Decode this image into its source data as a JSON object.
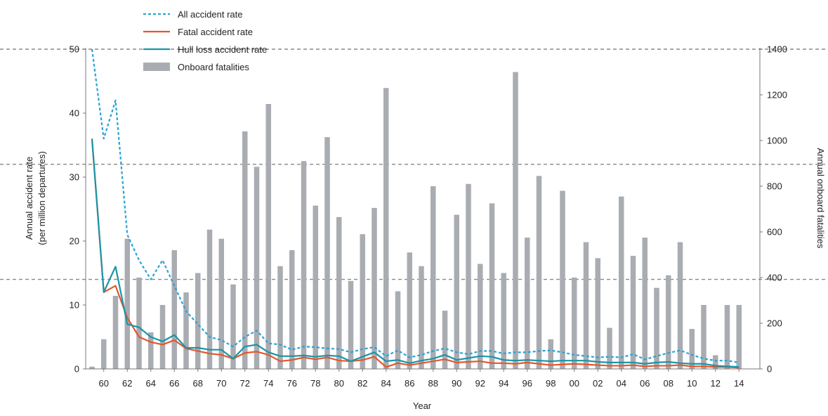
{
  "chart_data": {
    "type": "bar",
    "xlabel": "Year",
    "ylabel_left_line1": "Annual accident rate",
    "ylabel_left_line2": "(per million departures)",
    "ylabel_right": "Annual onboard fatalities",
    "ylim_left": [
      0,
      50
    ],
    "ylim_right": [
      0,
      1400
    ],
    "yticks_left": [
      "0",
      "10",
      "20",
      "30",
      "40",
      "50"
    ],
    "yticks_right": [
      "0",
      "200",
      "400",
      "600",
      "800",
      "1000",
      "1200",
      "1400"
    ],
    "x_tick_labels": [
      "60",
      "62",
      "64",
      "66",
      "68",
      "70",
      "72",
      "74",
      "76",
      "78",
      "80",
      "82",
      "84",
      "86",
      "88",
      "90",
      "92",
      "94",
      "96",
      "98",
      "00",
      "02",
      "04",
      "06",
      "08",
      "10",
      "12",
      "14"
    ],
    "years": [
      1959,
      1960,
      1961,
      1962,
      1963,
      1964,
      1965,
      1966,
      1967,
      1968,
      1969,
      1970,
      1971,
      1972,
      1973,
      1974,
      1975,
      1976,
      1977,
      1978,
      1979,
      1980,
      1981,
      1982,
      1983,
      1984,
      1985,
      1986,
      1987,
      1988,
      1989,
      1990,
      1991,
      1992,
      1993,
      1994,
      1995,
      1996,
      1997,
      1998,
      1999,
      2000,
      2001,
      2002,
      2003,
      2004,
      2005,
      2006,
      2007,
      2008,
      2009,
      2010,
      2011,
      2012,
      2013,
      2014
    ],
    "legend_position": "top-left",
    "series": [
      {
        "name": "All accident rate",
        "axis": "left",
        "kind": "line",
        "style": "dashed",
        "color": "#2aa3d8",
        "values": [
          50,
          36,
          42,
          21,
          17,
          14,
          17,
          13,
          9,
          7,
          5,
          4.5,
          3.5,
          5,
          6,
          4,
          3.8,
          3,
          3.5,
          3.4,
          3.2,
          3.1,
          2.6,
          3.1,
          3.4,
          2,
          2.9,
          1.8,
          2.2,
          2.8,
          3.2,
          2.6,
          2.3,
          2.8,
          2.8,
          2.4,
          2.6,
          2.6,
          2.8,
          2.9,
          2.6,
          2.2,
          2,
          1.8,
          1.9,
          1.8,
          2.3,
          1.5,
          2,
          2.5,
          2.9,
          2.2,
          1.6,
          1.3,
          1.3,
          1
        ]
      },
      {
        "name": "Fatal accident rate",
        "axis": "left",
        "kind": "line",
        "style": "solid",
        "color": "#e4572e",
        "values": [
          36,
          12,
          13,
          8,
          5,
          4.2,
          3.8,
          4.5,
          3.2,
          2.8,
          2.4,
          2.2,
          1.6,
          2.5,
          2.7,
          2.2,
          1.2,
          1.4,
          1.8,
          1.5,
          1.8,
          1.3,
          1.2,
          1.4,
          1.9,
          0.3,
          0.9,
          0.6,
          0.9,
          1.2,
          1.5,
          1.0,
          1.1,
          1.2,
          0.9,
          0.9,
          0.8,
          1.0,
          0.8,
          0.6,
          0.7,
          0.8,
          0.7,
          0.6,
          0.5,
          0.5,
          0.6,
          0.4,
          0.5,
          0.5,
          0.6,
          0.4,
          0.4,
          0.3,
          0.3,
          0.2
        ]
      },
      {
        "name": "Hull loss accident rate",
        "axis": "left",
        "kind": "line",
        "style": "solid",
        "color": "#1a95a8",
        "values": [
          36,
          12,
          16,
          7,
          6.5,
          5,
          4.3,
          5.3,
          3.3,
          3.3,
          3.0,
          3.0,
          1.6,
          3.5,
          3.8,
          2.6,
          2.0,
          2.0,
          2.1,
          1.9,
          2.1,
          2.0,
          1.2,
          1.9,
          2.6,
          1.2,
          1.4,
          0.9,
          1.3,
          1.6,
          2.2,
          1.4,
          1.7,
          2.0,
          1.9,
          1.4,
          1.3,
          1.4,
          1.3,
          1.2,
          1.3,
          1.3,
          1.3,
          1.1,
          1.0,
          1.0,
          1.0,
          0.8,
          1.0,
          1.1,
          0.9,
          0.8,
          0.8,
          0.5,
          0.4,
          0.3
        ]
      },
      {
        "name": "Onboard fatalities",
        "axis": "right",
        "kind": "bar",
        "color": "#a9acb1",
        "values": [
          10,
          130,
          320,
          570,
          400,
          160,
          280,
          520,
          335,
          420,
          610,
          570,
          370,
          1040,
          885,
          1160,
          450,
          520,
          910,
          715,
          1015,
          665,
          385,
          590,
          705,
          1230,
          340,
          510,
          450,
          800,
          255,
          675,
          810,
          460,
          725,
          420,
          1300,
          575,
          845,
          130,
          780,
          400,
          555,
          485,
          180,
          755,
          495,
          575,
          355,
          410,
          555,
          175,
          280,
          60,
          280,
          280
        ]
      }
    ]
  }
}
